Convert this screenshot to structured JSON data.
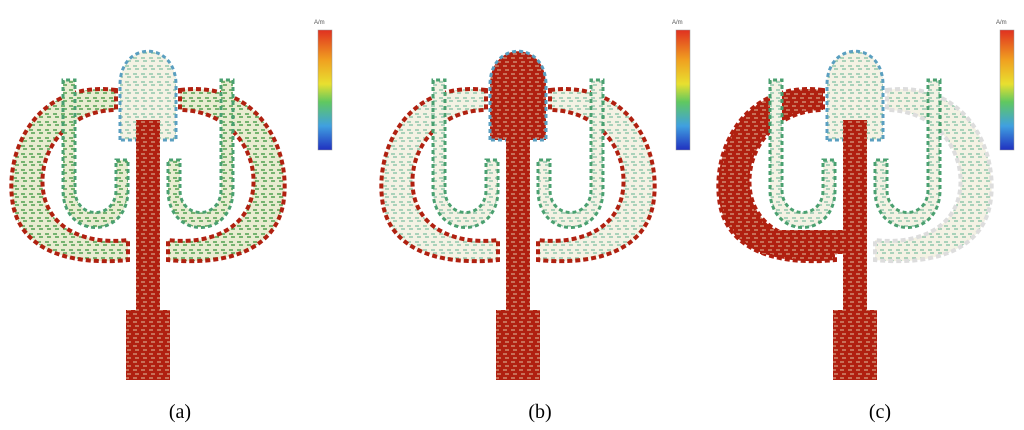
{
  "panels": [
    {
      "caption": "(a)",
      "unit": "A/m"
    },
    {
      "caption": "(b)",
      "unit": "A/m"
    },
    {
      "caption": "(c)",
      "unit": "A/m"
    }
  ]
}
